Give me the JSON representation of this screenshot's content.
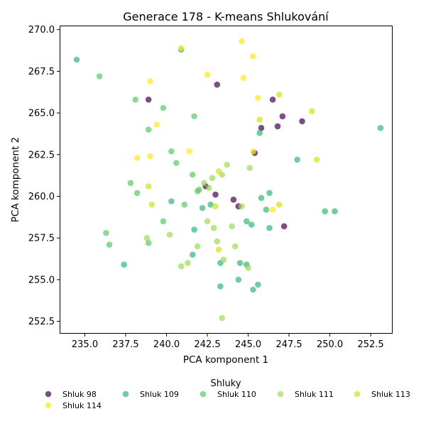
{
  "chart_data": {
    "type": "scatter",
    "title": "Generace 178 - K-means Shlukování",
    "xlabel": "PCA komponent 1",
    "ylabel": "PCA komponent 2",
    "xlim": [
      233.5,
      253.8
    ],
    "ylim": [
      251.8,
      270.2
    ],
    "xticks": [
      235.0,
      237.5,
      240.0,
      242.5,
      245.0,
      247.5,
      250.0,
      252.5
    ],
    "xtick_labels": [
      "235.0",
      "237.5",
      "240.0",
      "242.5",
      "245.0",
      "247.5",
      "250.0",
      "252.5"
    ],
    "yticks": [
      252.5,
      255.0,
      257.5,
      260.0,
      262.5,
      265.0,
      267.5,
      270.0
    ],
    "ytick_labels": [
      "252.5",
      "255.0",
      "257.5",
      "260.0",
      "262.5",
      "265.0",
      "267.5",
      "270.0"
    ],
    "grid": false,
    "legend": {
      "title": "Shluky",
      "placement": "bottom-center"
    },
    "series": [
      {
        "name": "Shluk 98",
        "color": "#440154",
        "points": [
          [
            238.9,
            265.8
          ],
          [
            243.1,
            266.7
          ],
          [
            246.5,
            265.8
          ],
          [
            247.1,
            264.8
          ],
          [
            245.8,
            264.1
          ],
          [
            246.8,
            264.2
          ],
          [
            248.3,
            264.5
          ],
          [
            245.4,
            262.6
          ],
          [
            243.0,
            260.1
          ],
          [
            244.1,
            259.8
          ],
          [
            244.4,
            259.4
          ],
          [
            242.4,
            260.6
          ],
          [
            247.2,
            258.2
          ]
        ]
      },
      {
        "name": "Shluk 109",
        "color": "#35b779",
        "points": [
          [
            234.5,
            268.2
          ],
          [
            240.9,
            268.8
          ],
          [
            253.1,
            264.1
          ],
          [
            245.7,
            263.8
          ],
          [
            248.0,
            262.2
          ],
          [
            246.3,
            260.2
          ],
          [
            245.8,
            259.9
          ],
          [
            246.1,
            259.2
          ],
          [
            249.7,
            259.1
          ],
          [
            250.3,
            259.1
          ],
          [
            240.3,
            259.7
          ],
          [
            242.2,
            259.3
          ],
          [
            242.7,
            259.5
          ],
          [
            245.2,
            258.3
          ],
          [
            244.9,
            258.5
          ],
          [
            246.3,
            258.1
          ],
          [
            241.7,
            258.0
          ],
          [
            241.6,
            256.5
          ],
          [
            243.3,
            256.0
          ],
          [
            244.5,
            256.0
          ],
          [
            244.9,
            255.9
          ],
          [
            244.4,
            255.0
          ],
          [
            245.6,
            254.7
          ],
          [
            243.3,
            254.6
          ],
          [
            245.3,
            254.4
          ],
          [
            237.4,
            255.9
          ]
        ]
      },
      {
        "name": "Shluk 110",
        "color": "#5ec962",
        "points": [
          [
            235.9,
            267.2
          ],
          [
            238.1,
            265.8
          ],
          [
            239.8,
            265.3
          ],
          [
            241.7,
            264.8
          ],
          [
            238.9,
            264.0
          ],
          [
            240.3,
            262.7
          ],
          [
            240.6,
            262.0
          ],
          [
            237.8,
            260.8
          ],
          [
            241.6,
            261.3
          ],
          [
            241.9,
            260.3
          ],
          [
            238.2,
            260.2
          ],
          [
            242.0,
            260.4
          ],
          [
            241.1,
            259.5
          ],
          [
            239.8,
            258.5
          ],
          [
            236.3,
            257.8
          ],
          [
            236.5,
            257.1
          ],
          [
            238.9,
            257.2
          ]
        ]
      },
      {
        "name": "Shluk 111",
        "color": "#9fd95a",
        "points": [
          [
            243.7,
            261.9
          ],
          [
            243.4,
            261.3
          ],
          [
            242.8,
            261.1
          ],
          [
            242.3,
            260.8
          ],
          [
            242.6,
            260.5
          ],
          [
            245.1,
            261.7
          ],
          [
            244.6,
            259.4
          ],
          [
            244.0,
            258.2
          ],
          [
            242.5,
            258.5
          ],
          [
            242.9,
            258.1
          ],
          [
            240.2,
            257.7
          ],
          [
            238.8,
            257.5
          ],
          [
            243.1,
            257.3
          ],
          [
            244.2,
            257.0
          ],
          [
            241.9,
            257.0
          ],
          [
            243.5,
            256.2
          ],
          [
            241.3,
            256.0
          ],
          [
            240.9,
            255.8
          ],
          [
            245.0,
            255.7
          ],
          [
            243.4,
            252.7
          ]
        ]
      },
      {
        "name": "Shluk 113",
        "color": "#d2e21b",
        "points": [
          [
            246.9,
            266.1
          ],
          [
            245.7,
            264.6
          ],
          [
            248.9,
            265.1
          ],
          [
            249.2,
            262.2
          ],
          [
            243.2,
            261.5
          ],
          [
            238.9,
            260.6
          ],
          [
            239.1,
            259.5
          ],
          [
            243.0,
            259.4
          ],
          [
            246.9,
            259.5
          ],
          [
            243.2,
            256.8
          ]
        ]
      },
      {
        "name": "Shluk 114",
        "color": "#fde725",
        "points": [
          [
            240.9,
            268.9
          ],
          [
            244.6,
            269.3
          ],
          [
            245.3,
            268.4
          ],
          [
            242.5,
            267.3
          ],
          [
            244.7,
            267.1
          ],
          [
            239.0,
            266.9
          ],
          [
            245.6,
            265.9
          ],
          [
            239.4,
            264.3
          ],
          [
            241.4,
            262.7
          ],
          [
            245.3,
            262.7
          ],
          [
            238.2,
            262.3
          ],
          [
            239.0,
            262.4
          ],
          [
            246.5,
            259.2
          ]
        ]
      }
    ]
  }
}
